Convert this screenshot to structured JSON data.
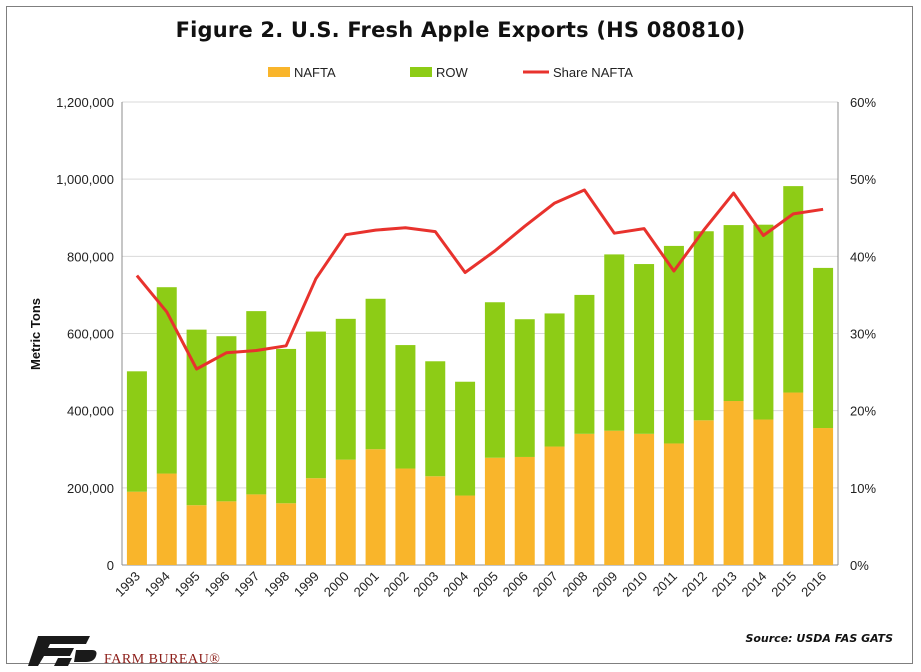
{
  "chart_data": {
    "type": "bar",
    "stacked": true,
    "title": "Figure 2. U.S. Fresh Apple Exports (HS 080810)",
    "ylabel": "Metric Tons",
    "ylim": [
      0,
      1200000
    ],
    "y_ticks": [
      "0",
      "200,000",
      "400,000",
      "600,000",
      "800,000",
      "1,000,000",
      "1,200,000"
    ],
    "y2lim": [
      0,
      60
    ],
    "y2_ticks": [
      "0%",
      "10%",
      "20%",
      "30%",
      "40%",
      "50%",
      "60%"
    ],
    "categories": [
      "1993",
      "1994",
      "1995",
      "1996",
      "1997",
      "1998",
      "1999",
      "2000",
      "2001",
      "2002",
      "2003",
      "2004",
      "2005",
      "2006",
      "2007",
      "2008",
      "2009",
      "2010",
      "2011",
      "2012",
      "2013",
      "2014",
      "2015",
      "2016"
    ],
    "series": [
      {
        "name": "NAFTA",
        "kind": "bar",
        "color": "#f9b52b",
        "values": [
          190000,
          237000,
          155000,
          165000,
          183000,
          160000,
          225000,
          273000,
          300000,
          250000,
          230000,
          180000,
          278000,
          280000,
          307000,
          340000,
          348000,
          340000,
          315000,
          375000,
          425000,
          377000,
          447000,
          355000
        ]
      },
      {
        "name": "ROW",
        "kind": "bar",
        "color": "#8dcc16",
        "values": [
          312000,
          483000,
          455000,
          428000,
          475000,
          400000,
          380000,
          365000,
          390000,
          320000,
          298000,
          295000,
          403000,
          357000,
          345000,
          360000,
          457000,
          440000,
          512000,
          490000,
          456000,
          505000,
          535000,
          415000
        ]
      },
      {
        "name": "Share NAFTA",
        "kind": "line",
        "axis": "right",
        "color": "#e8322d",
        "values": [
          37.5,
          32.8,
          25.4,
          27.5,
          27.8,
          28.4,
          37.1,
          42.8,
          43.4,
          43.7,
          43.2,
          37.9,
          40.7,
          43.9,
          46.9,
          48.6,
          43.0,
          43.6,
          38.1,
          43.4,
          48.2,
          42.7,
          45.5,
          46.1
        ]
      }
    ],
    "legend_position": "top",
    "grid": "horizontal"
  },
  "footer": {
    "source": "Source: USDA FAS GATS",
    "logo_text": "FARM BUREAU®"
  },
  "colors": {
    "nafta": "#f9b52b",
    "row": "#8dcc16",
    "share": "#e8322d",
    "logo": "#8c1d18"
  }
}
